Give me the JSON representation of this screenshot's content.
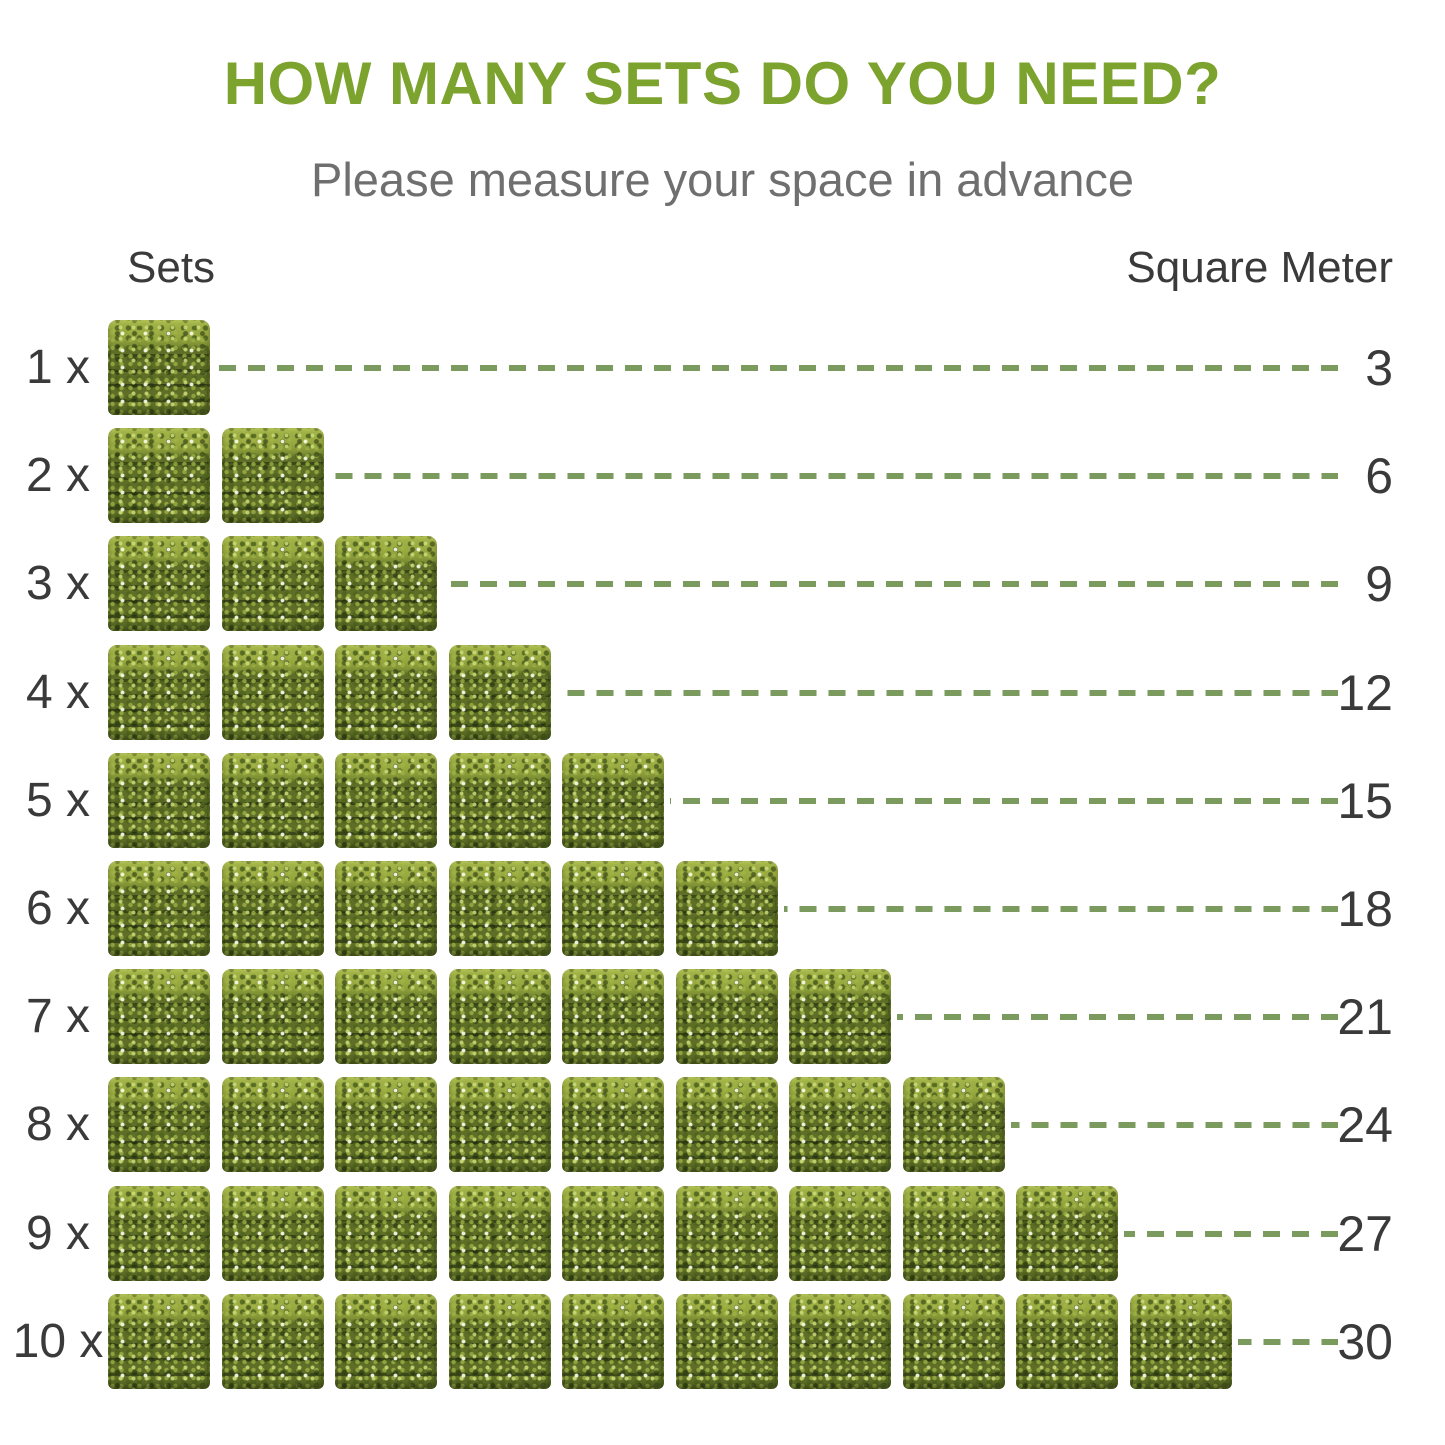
{
  "title": "HOW MANY SETS DO YOU NEED?",
  "subtitle": "Please measure your space in advance",
  "columns": {
    "sets": "Sets",
    "square_meter": "Square Meter"
  },
  "colors": {
    "title_green": "#7ca32d",
    "subtitle_gray": "#6f6f6f",
    "text_dark": "#3a3a3a",
    "dash_green": "#7a9a5e",
    "grass_dark": "#5e6e27",
    "grass_light_top": "#9cad44"
  },
  "chart_data": {
    "type": "pictogram-bar",
    "title": "HOW MANY SETS DO YOU NEED?",
    "subtitle": "Please measure your space in advance",
    "left_axis_label": "Sets",
    "right_axis_label": "Square Meter",
    "sqm_per_set": 3,
    "rows": [
      {
        "label": "1 x",
        "sets": 1,
        "square_meter": 3
      },
      {
        "label": "2 x",
        "sets": 2,
        "square_meter": 6
      },
      {
        "label": "3 x",
        "sets": 3,
        "square_meter": 9
      },
      {
        "label": "4 x",
        "sets": 4,
        "square_meter": 12
      },
      {
        "label": "5 x",
        "sets": 5,
        "square_meter": 15
      },
      {
        "label": "6 x",
        "sets": 6,
        "square_meter": 18
      },
      {
        "label": "7 x",
        "sets": 7,
        "square_meter": 21
      },
      {
        "label": "8 x",
        "sets": 8,
        "square_meter": 24
      },
      {
        "label": "9 x",
        "sets": 9,
        "square_meter": 27
      },
      {
        "label": "10 x",
        "sets": 10,
        "square_meter": 30
      }
    ]
  }
}
